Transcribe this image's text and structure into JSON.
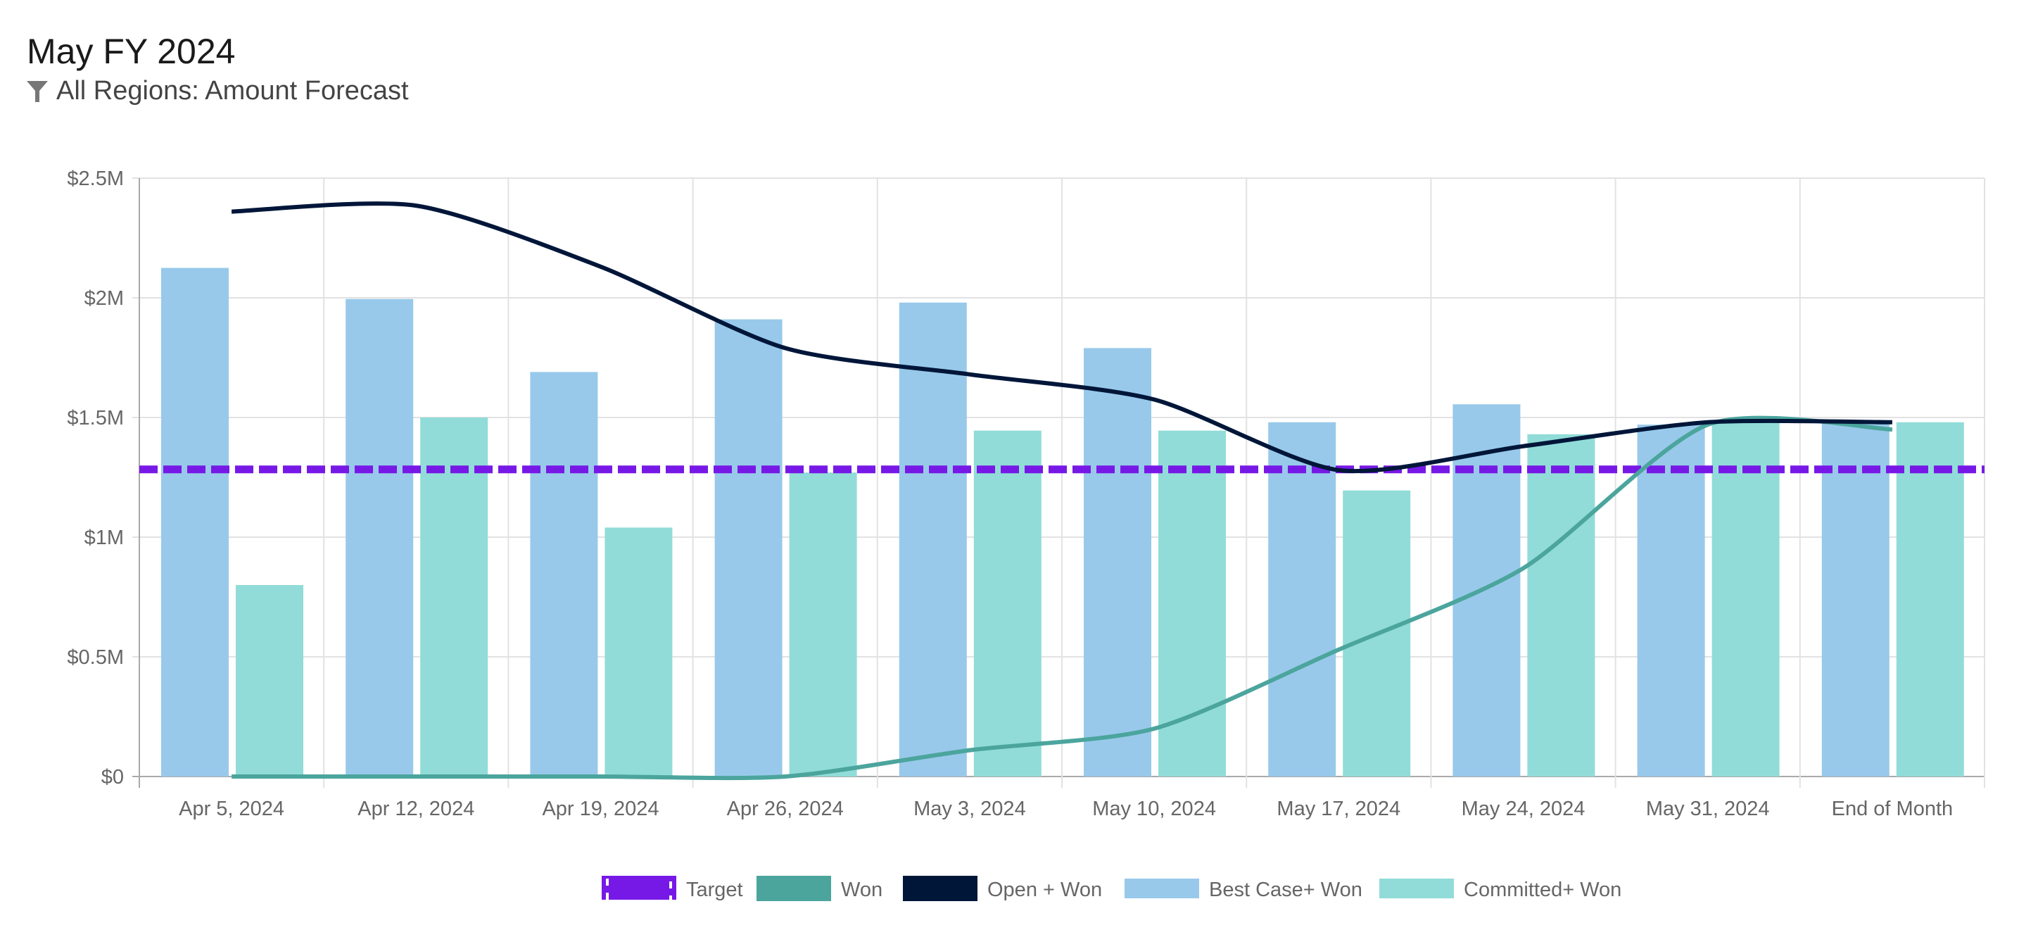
{
  "header": {
    "title": "May FY 2024",
    "subtitle": "All Regions: Amount Forecast",
    "filter_icon": "funnel-icon"
  },
  "chart_data": {
    "type": "bar",
    "title": "May FY 2024",
    "subtitle": "All Regions: Amount Forecast",
    "xlabel": "",
    "ylabel": "",
    "ylim": [
      0,
      2500000
    ],
    "yticks": [
      0,
      500000,
      1000000,
      1500000,
      2000000,
      2500000
    ],
    "ytick_labels": [
      "$0",
      "$0.5M",
      "$1M",
      "$1.5M",
      "$2M",
      "$2.5M"
    ],
    "grid": true,
    "legend_position": "bottom-center",
    "categories": [
      "Apr 5, 2024",
      "Apr 12, 2024",
      "Apr 19, 2024",
      "Apr 26, 2024",
      "May 3, 2024",
      "May 10, 2024",
      "May 17, 2024",
      "May 24, 2024",
      "May 31, 2024",
      "End of Month"
    ],
    "series": [
      {
        "name": "Target",
        "type": "line-dashed",
        "color": "#7719e6",
        "value": 1283000
      },
      {
        "name": "Won",
        "type": "line",
        "color": "#4ba59d",
        "values": [
          0,
          0,
          0,
          0,
          110000,
          200000,
          530000,
          870000,
          1470000,
          1450000
        ]
      },
      {
        "name": "Open + Won",
        "type": "line",
        "color": "#001639",
        "values": [
          2360000,
          2385000,
          2130000,
          1790000,
          1680000,
          1575000,
          1280000,
          1380000,
          1480000,
          1480000
        ]
      },
      {
        "name": "Best Case+ Won",
        "type": "bar",
        "color": "#98c9ea",
        "values": [
          2125000,
          1995000,
          1690000,
          1910000,
          1980000,
          1790000,
          1480000,
          1555000,
          1470000,
          1480000
        ]
      },
      {
        "name": "Committed+ Won",
        "type": "bar",
        "color": "#91dcd8",
        "values": [
          800000,
          1500000,
          1040000,
          1270000,
          1445000,
          1445000,
          1195000,
          1430000,
          1480000,
          1480000
        ]
      }
    ]
  }
}
